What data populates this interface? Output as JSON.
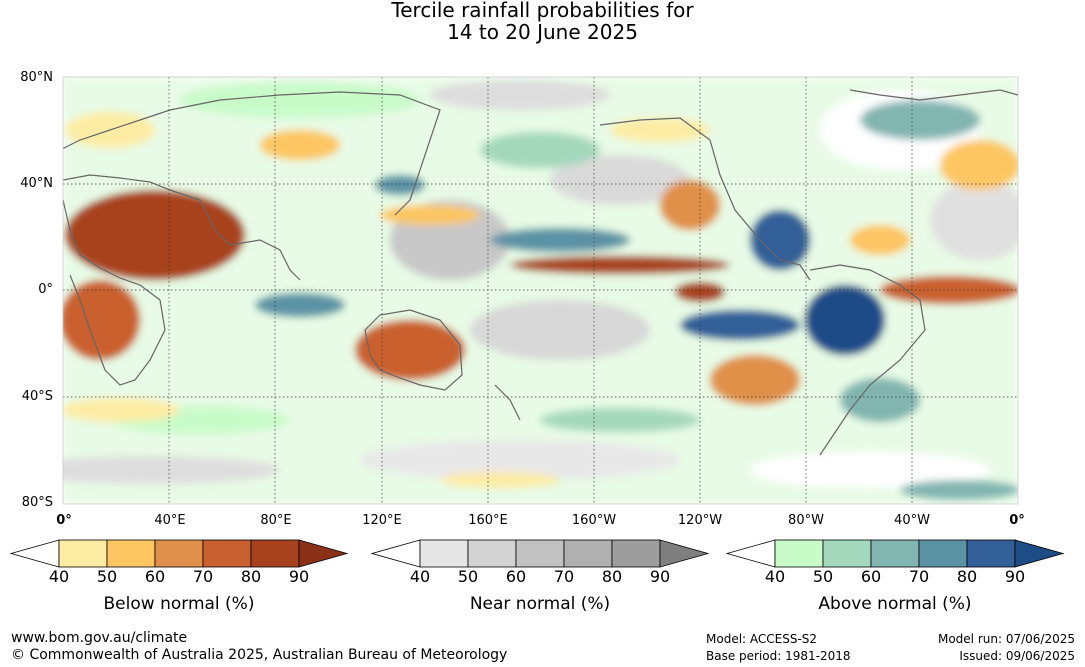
{
  "title": {
    "line1": "Tercile rainfall probabilities for",
    "line2": "14 to 20 June 2025"
  },
  "map": {
    "lat_ticks": [
      "80°N",
      "40°N",
      "0°",
      "40°S",
      "80°S"
    ],
    "lon_ticks": [
      "0°",
      "40°E",
      "80°E",
      "120°E",
      "160°E",
      "160°W",
      "120°W",
      "80°W",
      "40°W",
      "0°"
    ]
  },
  "colorbars": [
    {
      "title": "Below normal (%)",
      "labels": [
        "40",
        "50",
        "60",
        "70",
        "80",
        "90"
      ],
      "colors": [
        "#ffffff",
        "#fdeca4",
        "#fdc662",
        "#e0904a",
        "#c9602f",
        "#a8421e",
        "#8a3016"
      ]
    },
    {
      "title": "Near normal (%)",
      "labels": [
        "40",
        "50",
        "60",
        "70",
        "80",
        "90"
      ],
      "colors": [
        "#ffffff",
        "#e6e6e6",
        "#d3d3d3",
        "#c2c2c2",
        "#b0b0b0",
        "#9d9d9d",
        "#7f7f7f"
      ]
    },
    {
      "title": "Above normal (%)",
      "labels": [
        "40",
        "50",
        "60",
        "70",
        "80",
        "90"
      ],
      "colors": [
        "#ffffff",
        "#c9fbc9",
        "#a4d8bc",
        "#82b5b0",
        "#5b93a4",
        "#325f98",
        "#1d4c87"
      ]
    }
  ],
  "footer": {
    "website": "www.bom.gov.au/climate",
    "copyright": "© Commonwealth of Australia 2025, Australian Bureau of Meteorology",
    "model": "Model: ACCESS-S2",
    "base_period": "Base period: 1981-2018",
    "model_run": "Model run: 07/06/2025",
    "issued": "Issued: 09/06/2025"
  }
}
